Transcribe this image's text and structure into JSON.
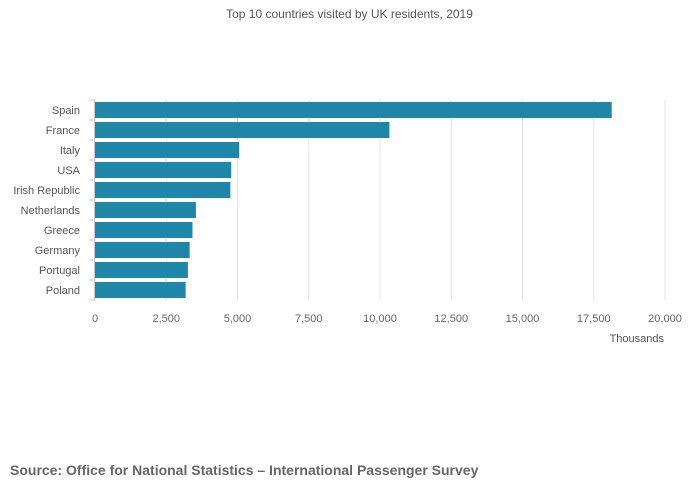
{
  "chart_data": {
    "type": "bar",
    "orientation": "horizontal",
    "title": "Top 10 countries visited by UK residents, 2019",
    "xlabel": "Thousands",
    "ylabel": "",
    "categories": [
      "Spain",
      "France",
      "Italy",
      "USA",
      "Irish Republic",
      "Netherlands",
      "Greece",
      "Germany",
      "Portugal",
      "Poland"
    ],
    "values": [
      18130,
      10330,
      5060,
      4780,
      4750,
      3540,
      3420,
      3320,
      3260,
      3180
    ],
    "xlim": [
      0,
      20000
    ],
    "xticks": [
      "0",
      "2,500",
      "5,000",
      "7,500",
      "10,000",
      "12,500",
      "15,000",
      "17,500",
      "20,000"
    ],
    "grid": "vertical",
    "legend": "none",
    "bar_color": "#1f86a8",
    "grid_color": "#e3e3e3"
  },
  "footer": {
    "source": "Source: Office for National Statistics – International Passenger Survey"
  }
}
